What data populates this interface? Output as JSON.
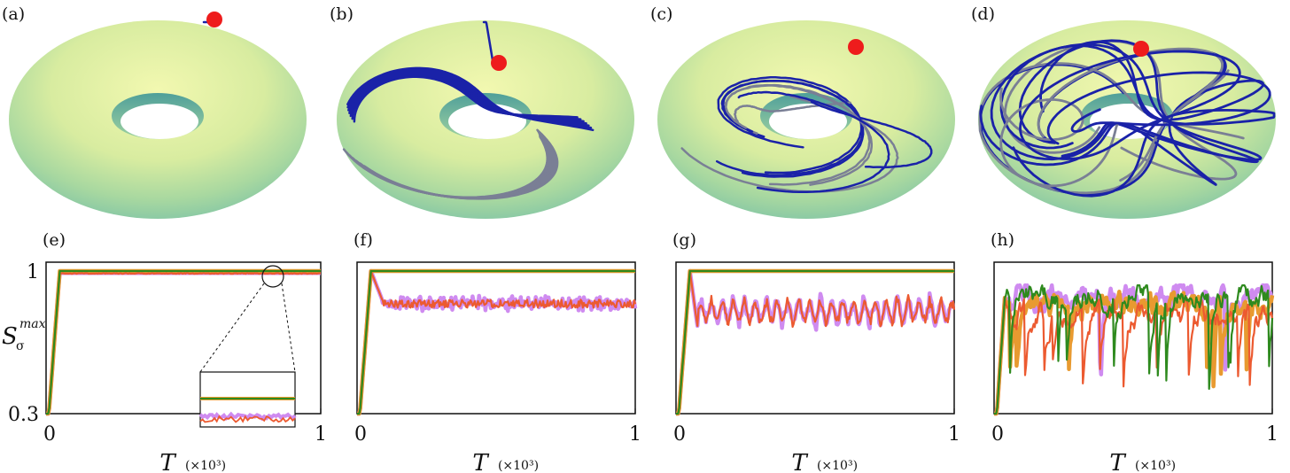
{
  "panels_top": [
    {
      "label": "(a)",
      "trajectory": "short"
    },
    {
      "label": "(b)",
      "trajectory": "regular"
    },
    {
      "label": "(c)",
      "trajectory": "mixed"
    },
    {
      "label": "(d)",
      "trajectory": "chaotic"
    }
  ],
  "colors": {
    "torus_light": "#eef5a6",
    "torus_mid": "#c6e59a",
    "torus_dark": "#7fc0a6",
    "trajectory": "#1a22a8",
    "trajectory_back": "#7a7f95",
    "marker": "#ee1c1c",
    "green": "#2e8a1e",
    "orange": "#e89a30",
    "red": "#ec5a30",
    "violet": "#cf8bf0"
  },
  "chart_data": [
    {
      "type": "line",
      "label": "(e)",
      "xlabel": "T",
      "xlabel_sub": "(×10³)",
      "ylabel": "S",
      "ylabel_sub": "σ",
      "ylabel_sup": "max",
      "xlim": [
        0,
        1
      ],
      "ylim": [
        0.3,
        1
      ],
      "xticks": [
        "0",
        "1"
      ],
      "yticks": [
        "0.3",
        "1"
      ],
      "regime": "e",
      "inset": true
    },
    {
      "type": "line",
      "label": "(f)",
      "xlabel": "T",
      "xlabel_sub": "(×10³)",
      "xlim": [
        0,
        1
      ],
      "ylim": [
        0.3,
        1
      ],
      "xticks": [
        "0",
        "1"
      ],
      "regime": "f"
    },
    {
      "type": "line",
      "label": "(g)",
      "xlabel": "T",
      "xlabel_sub": "(×10³)",
      "xlim": [
        0,
        1
      ],
      "ylim": [
        0.3,
        1
      ],
      "xticks": [
        "0",
        "1"
      ],
      "regime": "g"
    },
    {
      "type": "line",
      "label": "(h)",
      "xlabel": "T",
      "xlabel_sub": "(×10³)",
      "xlim": [
        0,
        1
      ],
      "ylim": [
        0.3,
        1
      ],
      "xticks": [
        "0",
        "1"
      ],
      "regime": "h"
    }
  ]
}
